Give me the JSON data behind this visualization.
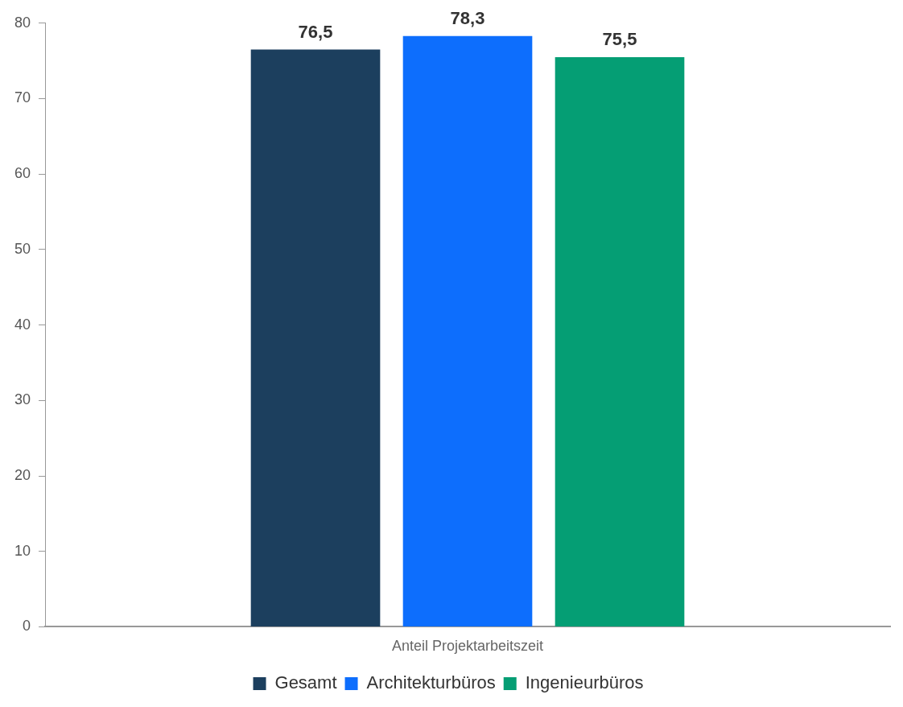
{
  "chart_data": {
    "type": "bar",
    "categories": [
      "Anteil Projektarbeitszeit"
    ],
    "series": [
      {
        "name": "Gesamt",
        "color": "#1c3f5e",
        "values": [
          76.5
        ],
        "value_labels": [
          "76,5"
        ]
      },
      {
        "name": "Architekturbüros",
        "color": "#0d6efd",
        "values": [
          78.3
        ],
        "value_labels": [
          "78,3"
        ]
      },
      {
        "name": "Ingenieurbüros",
        "color": "#059e74",
        "values": [
          75.5
        ],
        "value_labels": [
          "75,5"
        ]
      }
    ],
    "ylim": [
      0,
      80
    ],
    "yticks": [
      0,
      10,
      20,
      30,
      40,
      50,
      60,
      70,
      80
    ],
    "grid": false,
    "legend": "bottom"
  }
}
